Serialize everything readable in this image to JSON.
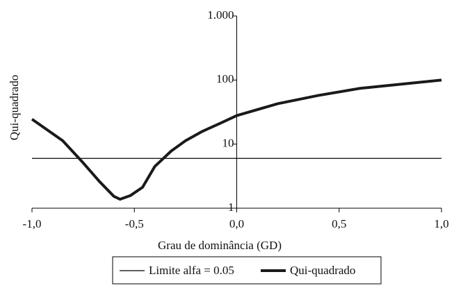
{
  "chart_data": {
    "type": "line",
    "y_axis_label": "Qui-quadrado",
    "x_axis_label": "Grau de dominância (GD)",
    "x": [
      -1,
      -0.85,
      -0.75,
      -0.67,
      -0.6,
      -0.57,
      -0.52,
      -0.46,
      -0.4,
      -0.32,
      -0.25,
      -0.17,
      -0.08,
      0,
      0.2,
      0.4,
      0.6,
      0.8,
      1
    ],
    "series": [
      {
        "name": "Limite alfa = 0.05",
        "color": "#000000",
        "width": 1.2,
        "values": [
          5.99,
          5.99,
          5.99,
          5.99,
          5.99,
          5.99,
          5.99,
          5.99,
          5.99,
          5.99,
          5.99,
          5.99,
          5.99,
          5.99,
          5.99,
          5.99,
          5.99,
          5.99,
          5.99
        ]
      },
      {
        "name": "Qui-quadrado",
        "color": "#1a1a1a",
        "width": 4,
        "values": [
          24.5,
          11.3,
          5.1,
          2.6,
          1.53,
          1.38,
          1.57,
          2.12,
          4.49,
          7.8,
          11.3,
          15.7,
          21.2,
          27.9,
          42.7,
          57.6,
          74,
          86,
          100
        ]
      }
    ],
    "xlim": [
      -1,
      1
    ],
    "xticks": [
      {
        "value": -1,
        "label": "-1,0"
      },
      {
        "value": -0.5,
        "label": "-0,5"
      },
      {
        "value": 0,
        "label": "0,0"
      },
      {
        "value": 0.5,
        "label": "0,5"
      },
      {
        "value": 1,
        "label": "1,0"
      }
    ],
    "ylim": [
      1,
      1000
    ],
    "yticks": [
      1,
      10,
      100,
      {
        "value": 1000,
        "label": "1.000"
      }
    ],
    "log_y": true,
    "grid": false,
    "legend": "bottom"
  }
}
